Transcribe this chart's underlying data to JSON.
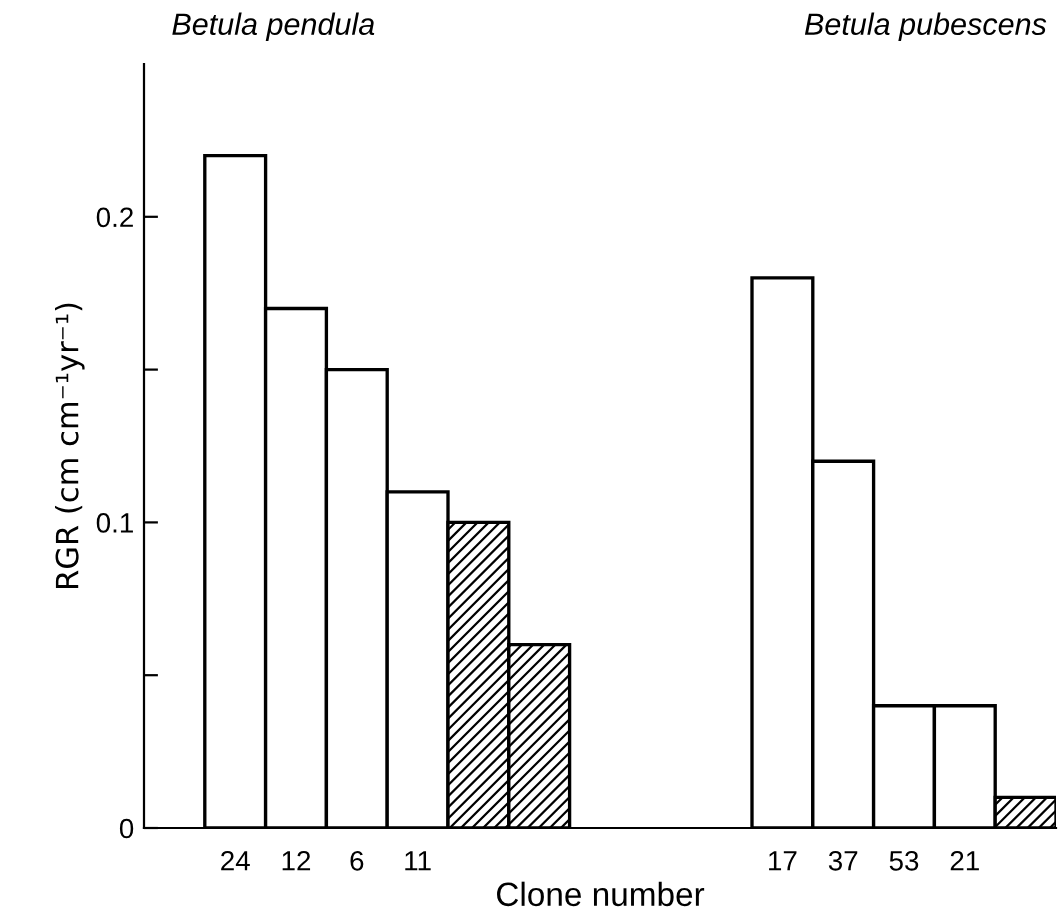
{
  "chart_data": {
    "type": "bar",
    "xlabel": "Clone number",
    "ylabel": "RGR (cm cm⁻¹yr⁻¹)",
    "annotations": [
      "Betula pendula",
      "Betula pubescens"
    ],
    "categories": [
      null,
      "24",
      "12",
      "6",
      "11",
      null,
      null,
      null,
      null,
      null,
      "17",
      "37",
      "53",
      "21",
      null
    ],
    "values": [
      null,
      0.22,
      0.17,
      0.15,
      0.11,
      0.1,
      0.06,
      null,
      null,
      null,
      0.18,
      0.12,
      0.04,
      0.04,
      0.01
    ],
    "colors": [
      "#ffffff",
      "#ffffff",
      "#ffffff",
      "#ffffff",
      "#ffffff",
      "#000000",
      "#000000",
      "#ffffff",
      "#ffffff",
      "#ffffff",
      "#ffffff",
      "#ffffff",
      "#ffffff",
      "#ffffff",
      "#000000"
    ],
    "ylim": [
      0,
      0.25
    ],
    "yticks": [
      0,
      {
        "value": 0.05,
        "label": null
      },
      0.1,
      {
        "value": 0.15,
        "label": null
      },
      0.2
    ],
    "grid": false,
    "legend": false
  }
}
